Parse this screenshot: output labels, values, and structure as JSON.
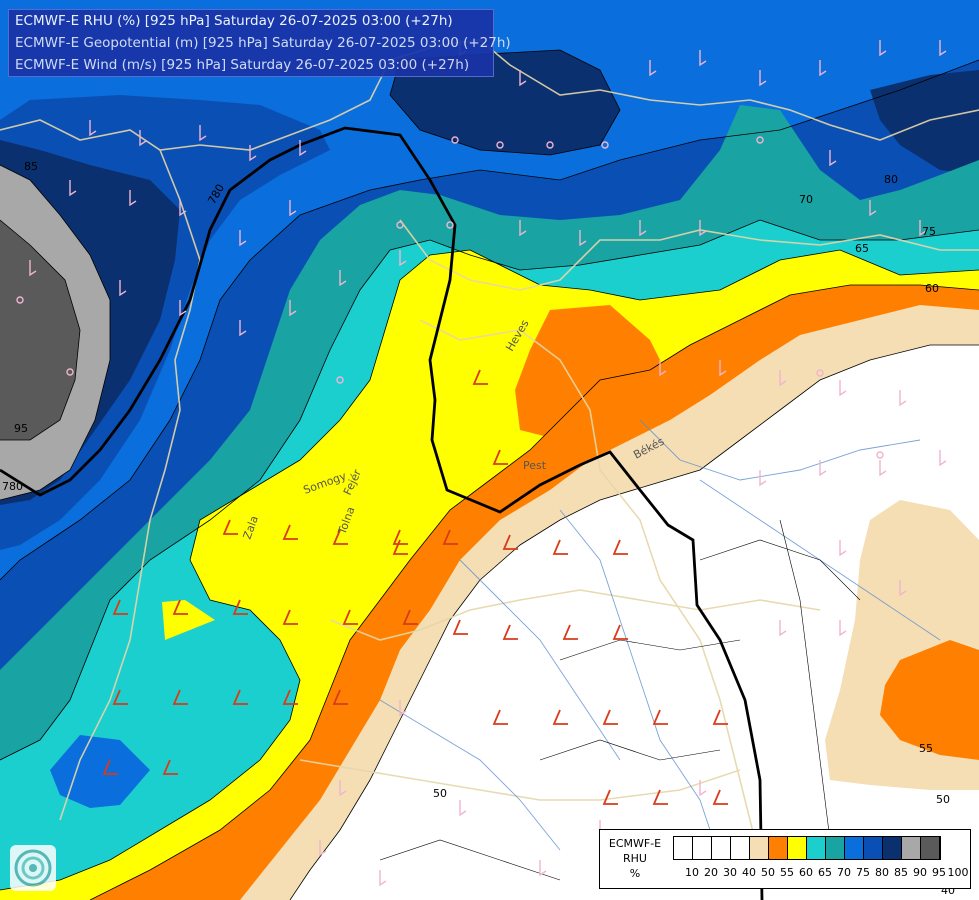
{
  "title": {
    "line1": "ECMWF-E RHU (%) [925 hPa] Saturday 26-07-2025 03:00 (+27h)",
    "line2": "ECMWF-E Geopotential (m) [925 hPa] Saturday 26-07-2025 03:00 (+27h)",
    "line3": "ECMWF-E Wind (m/s) [925 hPa] Saturday 26-07-2025 03:00 (+27h)"
  },
  "legend": {
    "title_lines": [
      "ECMWF-E",
      "RHU",
      "%"
    ],
    "ticks": [
      "10",
      "20",
      "30",
      "40",
      "50",
      "55",
      "60",
      "65",
      "70",
      "75",
      "80",
      "85",
      "90",
      "95",
      "100"
    ],
    "colors": [
      "#ffffff",
      "#ffffff",
      "#ffffff",
      "#ffffff",
      "#f5deb3",
      "#ff8000",
      "#ffff00",
      "#1ccfcf",
      "#1aa3a3",
      "#0a6edc",
      "#0a4fb4",
      "#0a3070",
      "#a8a8a8",
      "#5a5a5a"
    ]
  },
  "contour_labels": {
    "rhu": [
      "95",
      "85",
      "80",
      "75",
      "70",
      "65",
      "60",
      "55",
      "50",
      "50"
    ],
    "geopotential": [
      "780",
      "40",
      "780"
    ]
  },
  "place_labels": [
    "Heves",
    "Pest",
    "Békés",
    "Somogy",
    "Fejér",
    "Zala",
    "Tolna"
  ],
  "logo": "ecmwf-swirl-logo"
}
